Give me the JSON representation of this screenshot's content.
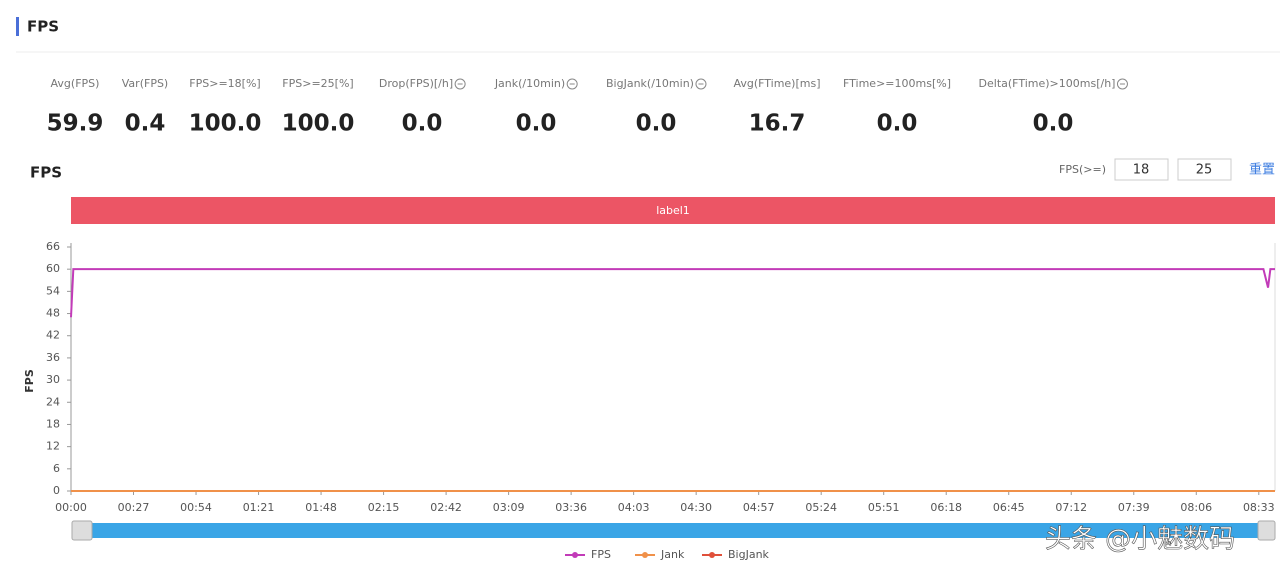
{
  "header": {
    "title": "FPS"
  },
  "stats": [
    {
      "label": "Avg(FPS)",
      "value": "59.9",
      "info_icon": false
    },
    {
      "label": "Var(FPS)",
      "value": "0.4",
      "info_icon": false
    },
    {
      "label": "FPS>=18[%]",
      "value": "100.0",
      "info_icon": false
    },
    {
      "label": "FPS>=25[%]",
      "value": "100.0",
      "info_icon": false
    },
    {
      "label": "Drop(FPS)[/h]",
      "value": "0.0",
      "info_icon": true
    },
    {
      "label": "Jank(/10min)",
      "value": "0.0",
      "info_icon": true
    },
    {
      "label": "BigJank(/10min)",
      "value": "0.0",
      "info_icon": true
    },
    {
      "label": "Avg(FTime)[ms]",
      "value": "16.7",
      "info_icon": false
    },
    {
      "label": "FTime>=100ms[%]",
      "value": "0.0",
      "info_icon": false
    },
    {
      "label": "Delta(FTime)>100ms[/h]",
      "value": "0.0",
      "info_icon": true
    }
  ],
  "chart_data": {
    "type": "line",
    "title": "FPS",
    "threshold_label": "FPS(>=)",
    "thresholds": [
      18,
      25
    ],
    "reset": "重置",
    "band_label": "label1",
    "band_color": "#ec5565",
    "ylabel": "FPS",
    "x": [
      0,
      1,
      515,
      517,
      518,
      520
    ],
    "series": [
      {
        "name": "FPS",
        "color": "#c23bb8",
        "values": [
          47,
          60,
          60,
          55,
          60,
          60
        ]
      },
      {
        "name": "Jank",
        "color": "#f0914a",
        "values": [
          0,
          0,
          0,
          0,
          0,
          0
        ]
      },
      {
        "name": "BigJank",
        "color": "#e0503a",
        "values": [
          0,
          0,
          0,
          0,
          0,
          0
        ]
      }
    ],
    "xlim": [
      0,
      520
    ],
    "ylim": [
      0,
      66
    ],
    "yticks": [
      0,
      6,
      12,
      18,
      24,
      30,
      36,
      42,
      48,
      54,
      60,
      66
    ],
    "xticks": [
      {
        "value": 0,
        "label": "00:00"
      },
      {
        "value": 27,
        "label": "00:27"
      },
      {
        "value": 54,
        "label": "00:54"
      },
      {
        "value": 81,
        "label": "01:21"
      },
      {
        "value": 108,
        "label": "01:48"
      },
      {
        "value": 135,
        "label": "02:15"
      },
      {
        "value": 162,
        "label": "02:42"
      },
      {
        "value": 189,
        "label": "03:09"
      },
      {
        "value": 216,
        "label": "03:36"
      },
      {
        "value": 243,
        "label": "04:03"
      },
      {
        "value": 270,
        "label": "04:30"
      },
      {
        "value": 297,
        "label": "04:57"
      },
      {
        "value": 324,
        "label": "05:24"
      },
      {
        "value": 351,
        "label": "05:51"
      },
      {
        "value": 378,
        "label": "06:18"
      },
      {
        "value": 405,
        "label": "06:45"
      },
      {
        "value": 432,
        "label": "07:12"
      },
      {
        "value": 459,
        "label": "07:39"
      },
      {
        "value": 486,
        "label": "08:06"
      },
      {
        "value": 513,
        "label": "08:33"
      }
    ],
    "grid": false
  },
  "watermark": "头条 @小魅数码"
}
